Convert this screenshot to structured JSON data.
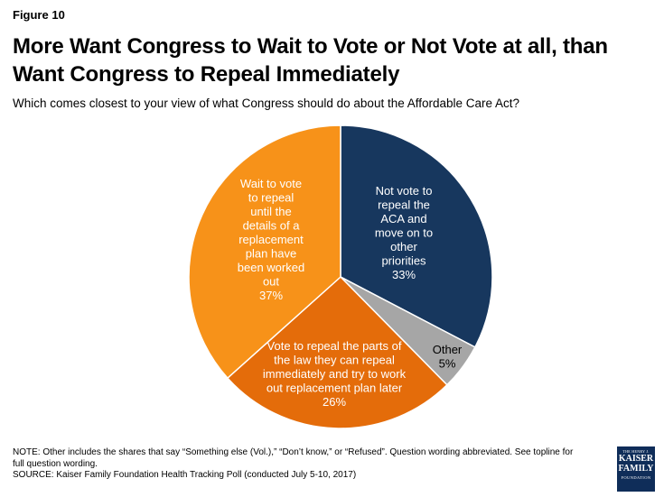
{
  "figure_label": "Figure 10",
  "title": "More Want Congress to Wait to Vote or Not Vote at all, than Want Congress to Repeal Immediately",
  "subtitle": "Which comes closest to your view of what Congress should do about the Affordable Care Act?",
  "chart_data": {
    "type": "pie",
    "title": "More Want Congress to Wait to Vote or Not Vote at all, than Want Congress to Repeal Immediately",
    "slices": [
      {
        "label_lines": [
          "Not vote to",
          "repeal the",
          "ACA and",
          "move on to",
          "other",
          "priorities",
          "33%"
        ],
        "value": 33,
        "color": "#17375e",
        "text": "light"
      },
      {
        "label_lines": [
          "Other",
          "5%"
        ],
        "value": 5,
        "color": "#a6a6a6",
        "text": "dark"
      },
      {
        "label_lines": [
          "Vote to repeal the parts of",
          "the law they can repeal",
          "immediately and try to work",
          "out replacement plan later",
          "26%"
        ],
        "value": 26,
        "color": "#e46c0a",
        "text": "light"
      },
      {
        "label_lines": [
          "Wait to vote",
          "to repeal",
          "until the",
          "details of a",
          "replacement",
          "plan have",
          "been worked",
          "out",
          "37%"
        ],
        "value": 37,
        "color": "#f79219",
        "text": "light"
      }
    ]
  },
  "note_lines": [
    "NOTE: Other includes the shares that say “Something else (Vol.),” “Don’t know,” or “Refused”. Question wording abbreviated. See topline for",
    "full question wording.",
    "SOURCE: Kaiser Family Foundation Health Tracking Poll (conducted July 5-10, 2017)"
  ],
  "logo": {
    "line0": "THE HENRY J.",
    "line1": "KAISER",
    "line2": "FAMILY",
    "line3": "FOUNDATION"
  }
}
